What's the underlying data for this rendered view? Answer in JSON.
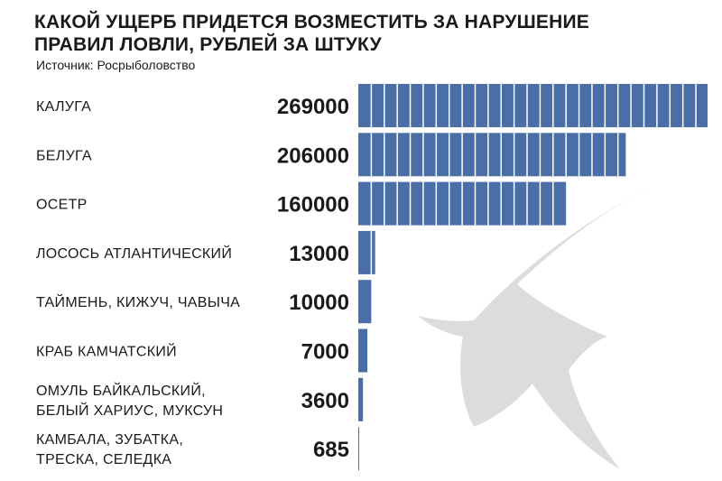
{
  "header": {
    "title_line1": "КАКОЙ УЩЕРБ ПРИДЕТСЯ ВОЗМЕСТИТЬ ЗА НАРУШЕНИЕ",
    "title_line2": "ПРАВИЛ ЛОВЛИ, РУБЛЕЙ ЗА ШТУКУ",
    "source": "Источник: Росрыболовство"
  },
  "colors": {
    "bar": "#4a6ea8",
    "segment_line": "#ffffff",
    "watermark": "#dcdcdc"
  },
  "decoration": {
    "watermark_icon": "fish-silhouette-icon"
  },
  "chart_data": {
    "type": "bar",
    "orientation": "horizontal",
    "categories": [
      [
        "КАЛУГА"
      ],
      [
        "БЕЛУГА"
      ],
      [
        "ОСЕТР"
      ],
      [
        "ЛОСОСЬ АТЛАНТИЧЕСКИЙ"
      ],
      [
        "ТАЙМЕНЬ, КИЖУЧ, ЧАВЫЧА"
      ],
      [
        "КРАБ КАМЧАТСКИЙ"
      ],
      [
        "ОМУЛЬ БАЙКАЛЬСКИЙ,",
        "БЕЛЫЙ ХАРИУС, МУКСУН"
      ],
      [
        "КАМБАЛА, ЗУБАТКА,",
        "ТРЕСКА, СЕЛЕДКА"
      ]
    ],
    "values": [
      269000,
      206000,
      160000,
      13000,
      10000,
      7000,
      3600,
      685
    ],
    "value_labels": [
      "269000",
      "206000",
      "160000",
      "13000",
      "10000",
      "7000",
      "3600",
      "685"
    ],
    "segment_size": 10000,
    "xlim": [
      0,
      269000
    ],
    "grid": false,
    "legend": "none"
  }
}
